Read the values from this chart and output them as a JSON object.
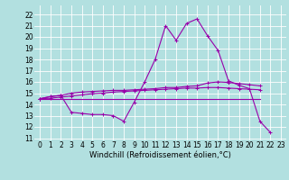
{
  "xlabel": "Windchill (Refroidissement éolien,°C)",
  "background_color": "#b2e0e0",
  "grid_color": "#ffffff",
  "line_color": "#9900aa",
  "x_ticks": [
    0,
    1,
    2,
    3,
    4,
    5,
    6,
    7,
    8,
    9,
    10,
    11,
    12,
    13,
    14,
    15,
    16,
    17,
    18,
    19,
    20,
    21,
    22,
    23
  ],
  "y_ticks": [
    11,
    12,
    13,
    14,
    15,
    16,
    17,
    18,
    19,
    20,
    21,
    22
  ],
  "ylim": [
    10.8,
    22.8
  ],
  "xlim": [
    -0.5,
    23.5
  ],
  "series1": [
    14.5,
    14.7,
    14.8,
    13.3,
    13.2,
    13.1,
    13.1,
    13.0,
    12.5,
    14.2,
    16.0,
    18.0,
    21.0,
    19.7,
    21.2,
    21.6,
    20.1,
    18.8,
    16.1,
    15.7,
    15.4,
    12.5,
    11.5,
    null
  ],
  "series2": [
    14.5,
    14.7,
    14.8,
    15.0,
    15.1,
    15.15,
    15.2,
    15.25,
    15.25,
    15.3,
    15.35,
    15.4,
    15.5,
    15.5,
    15.6,
    15.65,
    15.9,
    16.0,
    15.95,
    15.85,
    15.75,
    15.65,
    null,
    null
  ],
  "series3": [
    14.5,
    14.55,
    14.65,
    14.75,
    14.85,
    14.95,
    15.0,
    15.1,
    15.15,
    15.2,
    15.25,
    15.3,
    15.35,
    15.4,
    15.45,
    15.45,
    15.5,
    15.5,
    15.45,
    15.4,
    15.35,
    15.3,
    null,
    null
  ],
  "series4": [
    14.5,
    14.5,
    14.5,
    14.5,
    14.5,
    14.5,
    14.5,
    14.5,
    14.5,
    14.5,
    14.5,
    14.5,
    14.5,
    14.5,
    14.5,
    14.5,
    14.5,
    14.5,
    14.5,
    14.5,
    14.5,
    14.5,
    null,
    null
  ],
  "tick_fontsize": 5.5,
  "xlabel_fontsize": 6.0
}
